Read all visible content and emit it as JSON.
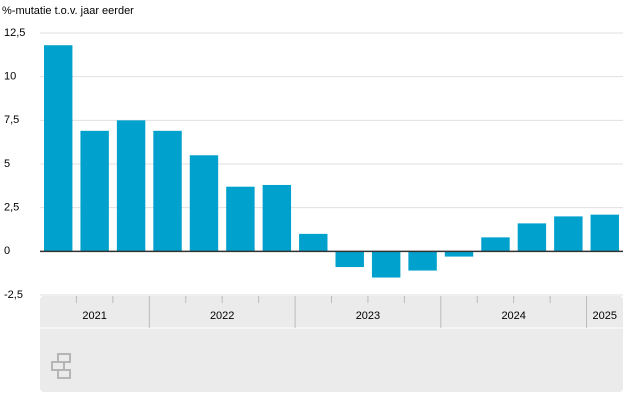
{
  "chart_data": {
    "type": "bar",
    "title": "%-mutatie t.o.v. jaar eerder",
    "categories": [
      null,
      null,
      null,
      null,
      null,
      null,
      null,
      null,
      null,
      null,
      null,
      null,
      null,
      null,
      null,
      null
    ],
    "values": [
      11.8,
      6.9,
      7.5,
      6.9,
      5.5,
      3.7,
      3.8,
      1.0,
      -0.9,
      -1.5,
      -1.1,
      -0.3,
      0.8,
      1.6,
      2.0,
      2.1
    ],
    "x_groups": [
      {
        "label": "2021",
        "categories": 3
      },
      {
        "label": "2022",
        "categories": 4
      },
      {
        "label": "2023",
        "categories": 4
      },
      {
        "label": "2024",
        "categories": 4
      },
      {
        "label": "2025",
        "categories": 1
      }
    ],
    "color": "#00a1cd",
    "ylim": [
      -2.5,
      12.5
    ],
    "yticks": [
      {
        "value": -2.5,
        "label": "-2,5"
      },
      0,
      {
        "value": 2.5,
        "label": "2,5"
      },
      5,
      {
        "value": 7.5,
        "label": "7,5"
      },
      10,
      {
        "value": 12.5,
        "label": "12,5"
      }
    ],
    "grid": true
  }
}
